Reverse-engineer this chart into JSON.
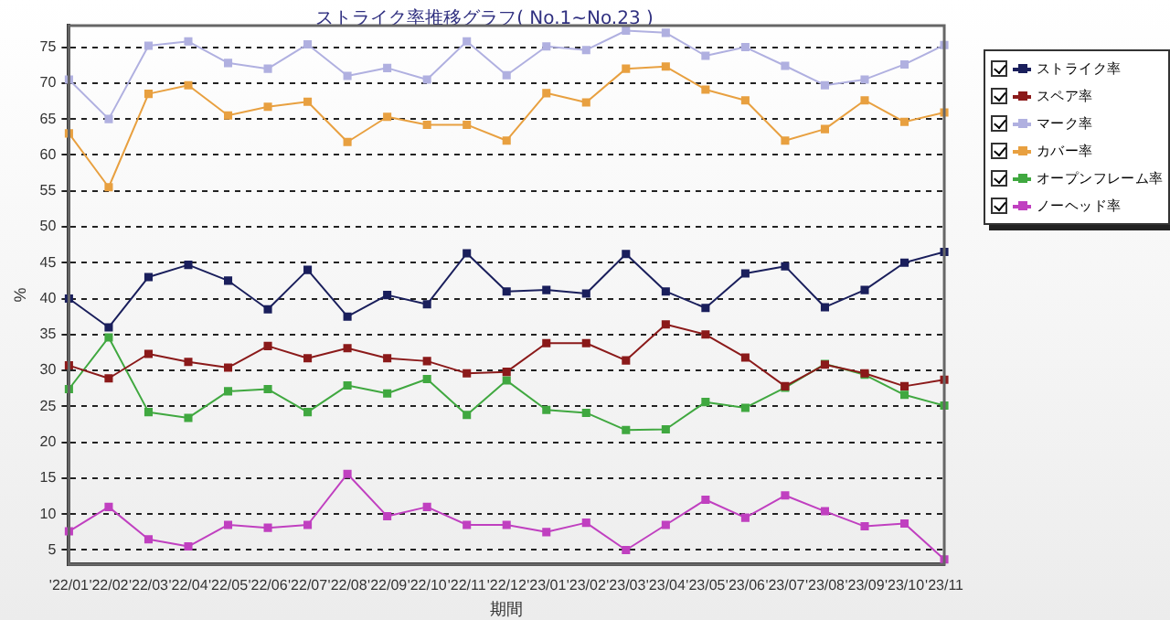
{
  "chart_data": {
    "type": "line",
    "title": "ストライク率推移グラフ( No.1~No.23 )",
    "xlabel": "期間",
    "ylabel": "%",
    "categories": [
      "'22/01",
      "'22/02",
      "'22/03",
      "'22/04",
      "'22/05",
      "'22/06",
      "'22/07",
      "'22/08",
      "'22/09",
      "'22/10",
      "'22/11",
      "'22/12",
      "'23/01",
      "'23/02",
      "'23/03",
      "'23/04",
      "'23/05",
      "'23/06",
      "'23/07",
      "'23/08",
      "'23/09",
      "'23/10",
      "'23/11"
    ],
    "series": [
      {
        "name": "ストライク率",
        "color": "#1a1f5c",
        "values": [
          40,
          36,
          43,
          44.7,
          42.5,
          38.5,
          44,
          37.5,
          40.5,
          39.2,
          46.3,
          41,
          41.2,
          40.7,
          46.2,
          41,
          38.7,
          43.5,
          44.5,
          38.8,
          41.2,
          45,
          46.5
        ]
      },
      {
        "name": "スペア率",
        "color": "#8b1a1a",
        "values": [
          30.7,
          28.9,
          32.3,
          31.2,
          30.4,
          33.4,
          31.7,
          33.1,
          31.7,
          31.3,
          29.6,
          29.8,
          33.8,
          33.8,
          31.4,
          36.4,
          35,
          31.8,
          27.8,
          30.8,
          29.6,
          27.8,
          28.7
        ]
      },
      {
        "name": "マーク率",
        "color": "#b0b0e0",
        "values": [
          70.5,
          65,
          75.2,
          75.8,
          72.8,
          72,
          75.4,
          71,
          72.1,
          70.5,
          75.8,
          71.1,
          75.1,
          74.6,
          77.3,
          77,
          73.8,
          75,
          72.4,
          69.7,
          70.5,
          72.6,
          75.3
        ]
      },
      {
        "name": "カバー率",
        "color": "#e8a040",
        "values": [
          63,
          55.5,
          68.5,
          69.7,
          65.5,
          66.7,
          67.4,
          61.8,
          65.3,
          64.2,
          64.2,
          62,
          68.6,
          67.3,
          72,
          72.3,
          69.1,
          67.6,
          62,
          63.6,
          67.6,
          64.6,
          65.9
        ]
      },
      {
        "name": "オープンフレーム率",
        "color": "#40a840",
        "values": [
          27.4,
          34.6,
          24.2,
          23.4,
          27.1,
          27.4,
          24.2,
          27.9,
          26.8,
          28.8,
          23.8,
          28.6,
          24.5,
          24.1,
          21.7,
          21.8,
          25.6,
          24.8,
          27.6,
          30.9,
          29.4,
          26.6,
          25.1
        ]
      },
      {
        "name": "ノーヘッド率",
        "color": "#c040c0",
        "values": [
          7.6,
          11,
          6.5,
          5.5,
          8.5,
          8.1,
          8.5,
          15.6,
          9.7,
          11,
          8.5,
          8.5,
          7.5,
          8.8,
          5,
          8.5,
          12,
          9.5,
          12.6,
          10.4,
          8.3,
          8.7,
          3.7
        ]
      }
    ],
    "ylim": [
      3,
      78
    ],
    "yticks": [
      5,
      10,
      15,
      20,
      25,
      30,
      35,
      40,
      45,
      50,
      55,
      60,
      65,
      70,
      75
    ],
    "grid": "y",
    "legend": "top right",
    "marker": "square",
    "line_style": "solid"
  }
}
